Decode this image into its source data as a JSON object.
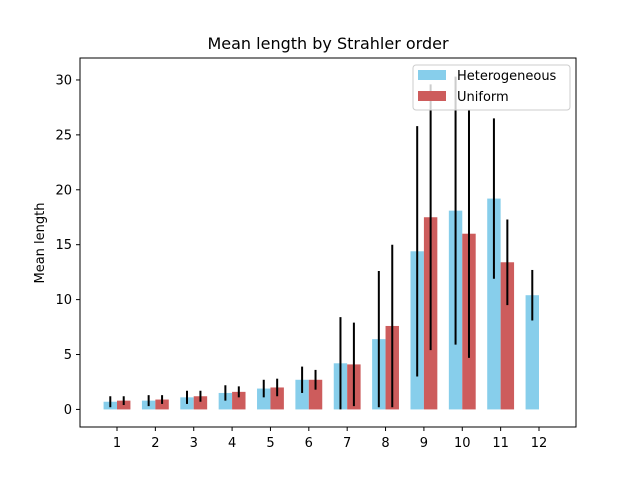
{
  "chart_data": {
    "type": "bar",
    "title": "Mean length by Strahler order",
    "xlabel": "",
    "ylabel": "Mean length",
    "categories": [
      "1",
      "2",
      "3",
      "4",
      "5",
      "6",
      "7",
      "8",
      "9",
      "10",
      "11",
      "12"
    ],
    "ylim": [
      -1.6,
      32
    ],
    "yticks": [
      0,
      5,
      10,
      15,
      20,
      25,
      30
    ],
    "legend_position": "top-right",
    "grid": false,
    "series": [
      {
        "name": "Heterogeneous",
        "color": "#87ceeb",
        "values": [
          0.7,
          0.8,
          1.1,
          1.5,
          1.9,
          2.7,
          4.2,
          6.4,
          14.4,
          18.1,
          19.2,
          10.4
        ],
        "errors": [
          0.5,
          0.5,
          0.6,
          0.7,
          0.8,
          1.2,
          4.2,
          6.2,
          11.4,
          12.2,
          7.3,
          2.3
        ]
      },
      {
        "name": "Uniform",
        "color": "#cd5c5c",
        "values": [
          0.8,
          0.9,
          1.2,
          1.6,
          2.0,
          2.7,
          4.1,
          7.6,
          17.5,
          16.0,
          13.4,
          null
        ],
        "errors": [
          0.4,
          0.4,
          0.5,
          0.5,
          0.8,
          0.9,
          3.8,
          7.4,
          12.1,
          11.3,
          3.9,
          null
        ]
      }
    ]
  }
}
